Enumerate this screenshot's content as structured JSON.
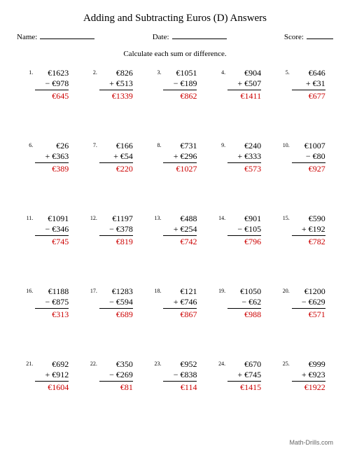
{
  "title": "Adding and Subtracting Euros (D) Answers",
  "labels": {
    "name": "Name:",
    "date": "Date:",
    "score": "Score:"
  },
  "instruction": "Calculate each sum or difference.",
  "footer": "Math-Drills.com",
  "currency": "€",
  "answer_color": "#cc0000",
  "problems": [
    {
      "n": "1.",
      "a": "€1623",
      "op": "−",
      "b": "€978",
      "ans": "€645"
    },
    {
      "n": "2.",
      "a": "€826",
      "op": "+",
      "b": "€513",
      "ans": "€1339"
    },
    {
      "n": "3.",
      "a": "€1051",
      "op": "−",
      "b": "€189",
      "ans": "€862"
    },
    {
      "n": "4.",
      "a": "€904",
      "op": "+",
      "b": "€507",
      "ans": "€1411"
    },
    {
      "n": "5.",
      "a": "€646",
      "op": "+",
      "b": "€31",
      "ans": "€677"
    },
    {
      "n": "6.",
      "a": "€26",
      "op": "+",
      "b": "€363",
      "ans": "€389"
    },
    {
      "n": "7.",
      "a": "€166",
      "op": "+",
      "b": "€54",
      "ans": "€220"
    },
    {
      "n": "8.",
      "a": "€731",
      "op": "+",
      "b": "€296",
      "ans": "€1027"
    },
    {
      "n": "9.",
      "a": "€240",
      "op": "+",
      "b": "€333",
      "ans": "€573"
    },
    {
      "n": "10.",
      "a": "€1007",
      "op": "−",
      "b": "€80",
      "ans": "€927"
    },
    {
      "n": "11.",
      "a": "€1091",
      "op": "−",
      "b": "€346",
      "ans": "€745"
    },
    {
      "n": "12.",
      "a": "€1197",
      "op": "−",
      "b": "€378",
      "ans": "€819"
    },
    {
      "n": "13.",
      "a": "€488",
      "op": "+",
      "b": "€254",
      "ans": "€742"
    },
    {
      "n": "14.",
      "a": "€901",
      "op": "−",
      "b": "€105",
      "ans": "€796"
    },
    {
      "n": "15.",
      "a": "€590",
      "op": "+",
      "b": "€192",
      "ans": "€782"
    },
    {
      "n": "16.",
      "a": "€1188",
      "op": "−",
      "b": "€875",
      "ans": "€313"
    },
    {
      "n": "17.",
      "a": "€1283",
      "op": "−",
      "b": "€594",
      "ans": "€689"
    },
    {
      "n": "18.",
      "a": "€121",
      "op": "+",
      "b": "€746",
      "ans": "€867"
    },
    {
      "n": "19.",
      "a": "€1050",
      "op": "−",
      "b": "€62",
      "ans": "€988"
    },
    {
      "n": "20.",
      "a": "€1200",
      "op": "−",
      "b": "€629",
      "ans": "€571"
    },
    {
      "n": "21.",
      "a": "€692",
      "op": "+",
      "b": "€912",
      "ans": "€1604"
    },
    {
      "n": "22.",
      "a": "€350",
      "op": "−",
      "b": "€269",
      "ans": "€81"
    },
    {
      "n": "23.",
      "a": "€952",
      "op": "−",
      "b": "€838",
      "ans": "€114"
    },
    {
      "n": "24.",
      "a": "€670",
      "op": "+",
      "b": "€745",
      "ans": "€1415"
    },
    {
      "n": "25.",
      "a": "€999",
      "op": "+",
      "b": "€923",
      "ans": "€1922"
    }
  ]
}
